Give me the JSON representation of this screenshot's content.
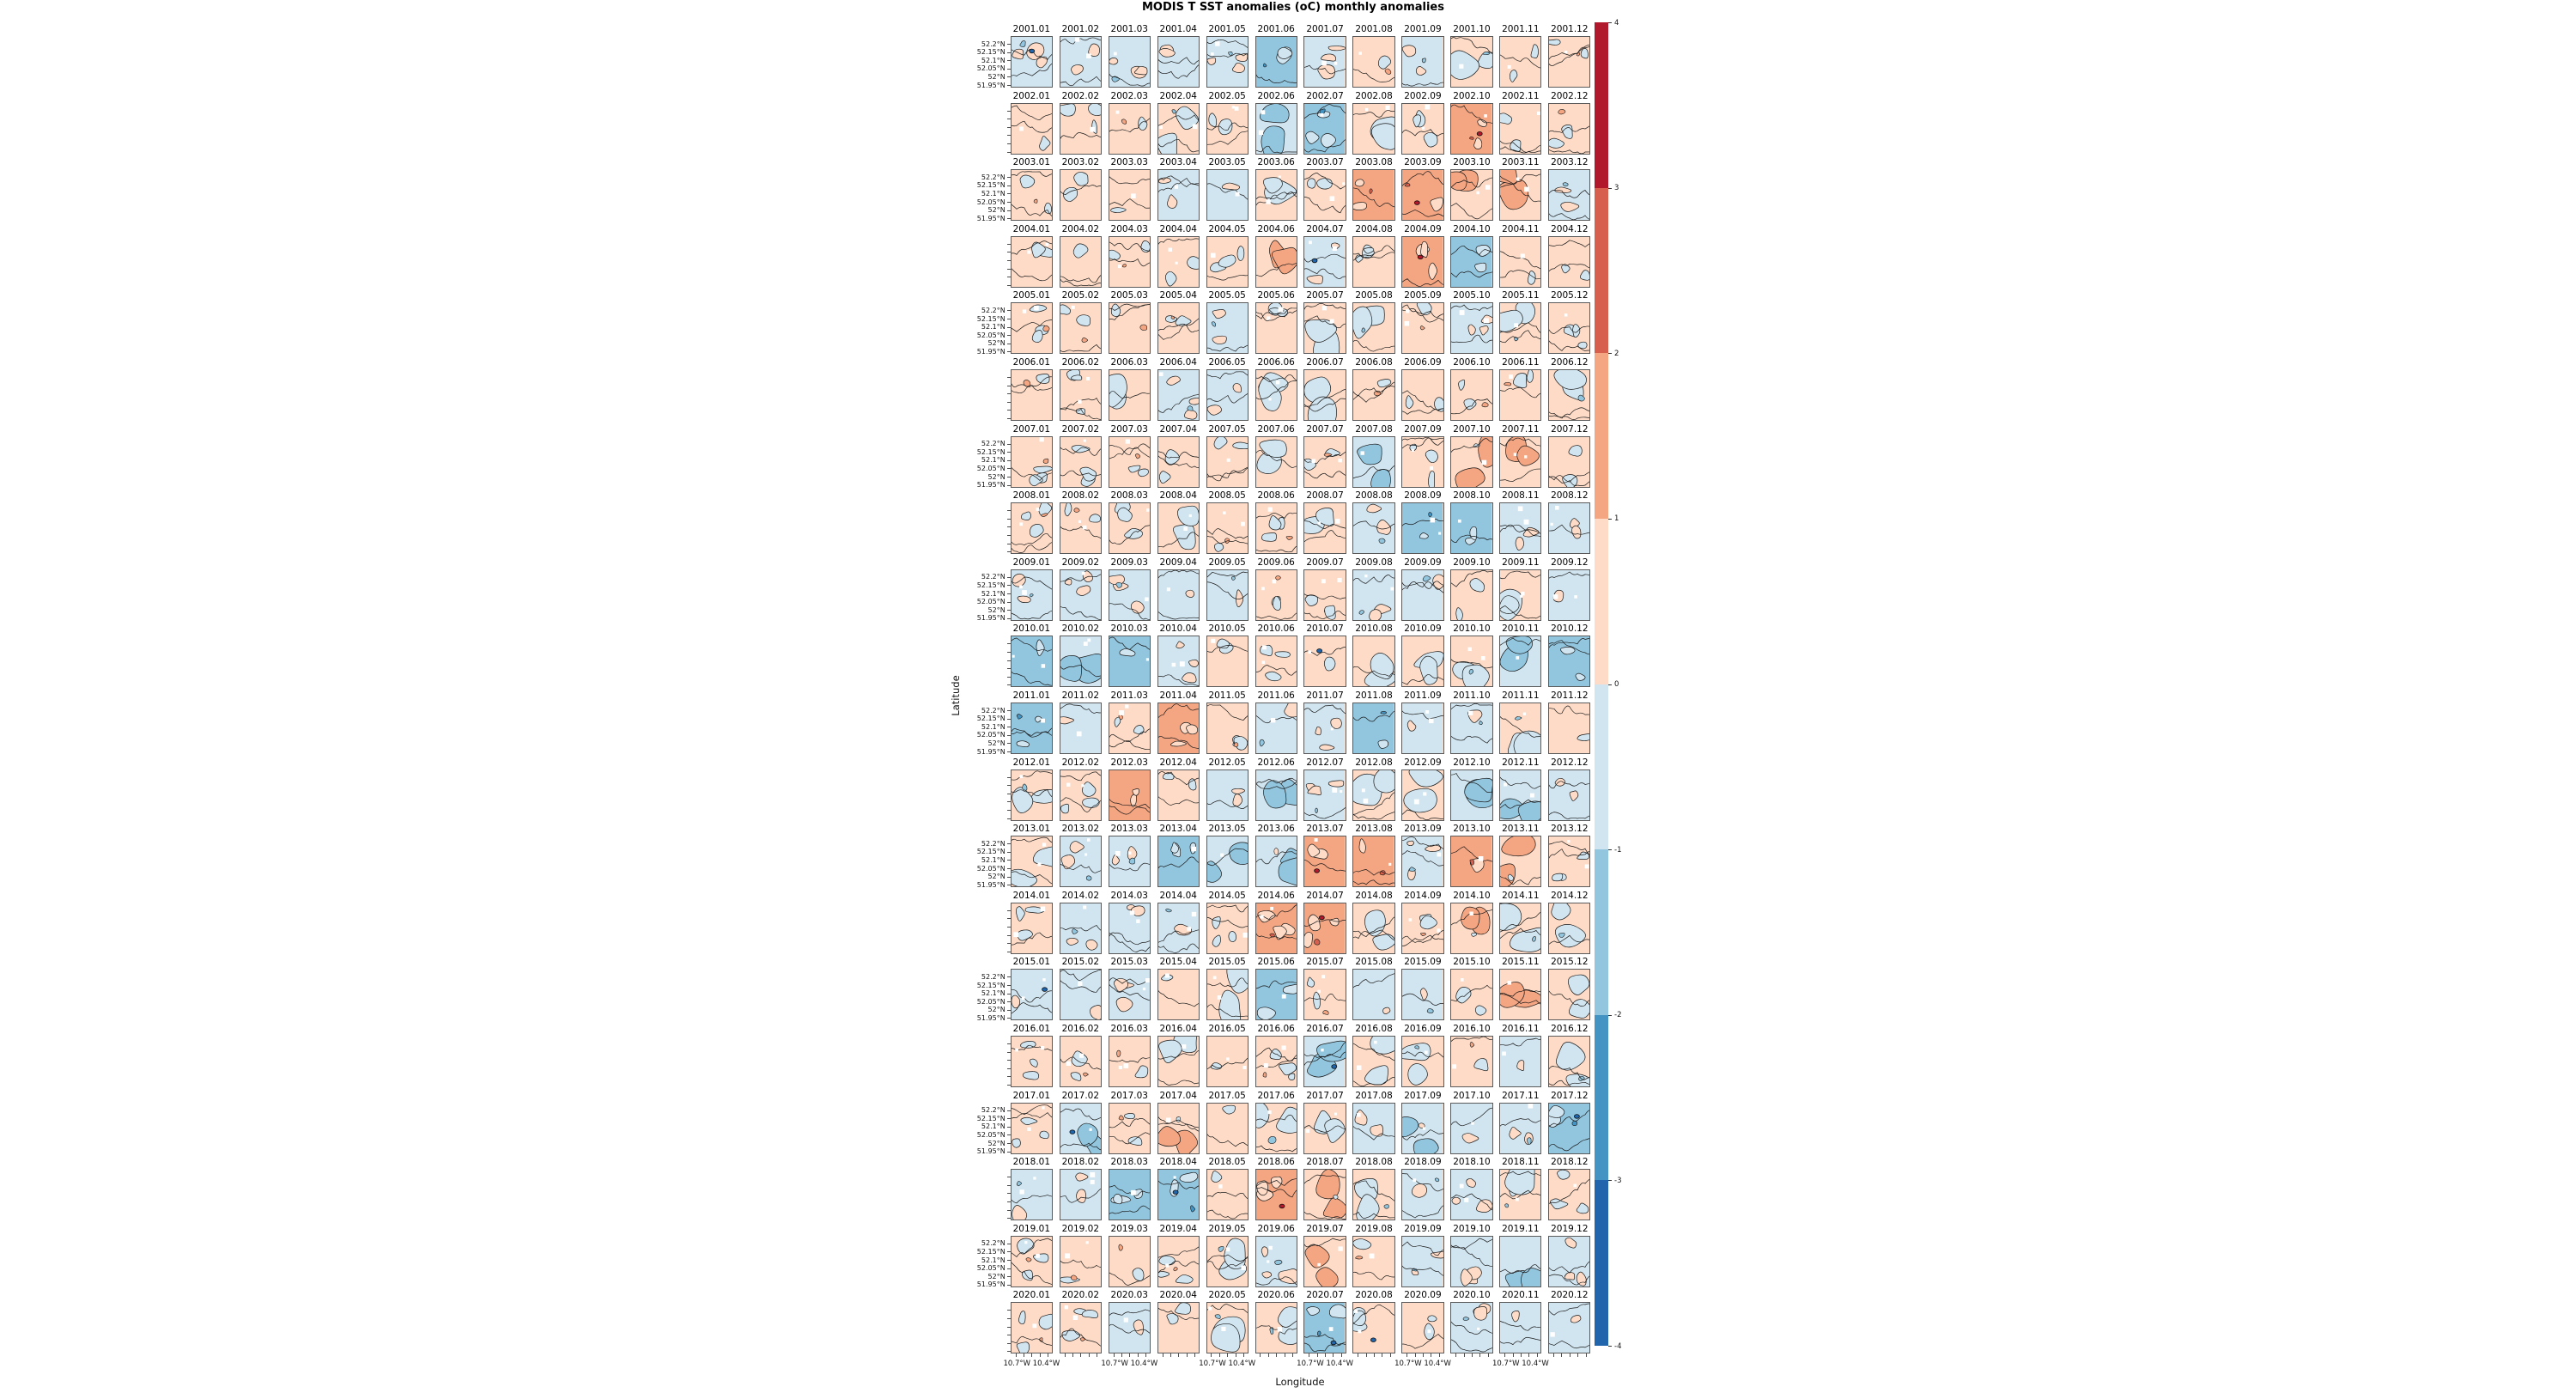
{
  "figure": {
    "title": "MODIS T SST anomalies (oC) monthly anomalies",
    "xlabel": "Longitude",
    "ylabel": "Latitude"
  },
  "axes": {
    "lat_tick_labels": [
      "52.2°N",
      "52.15°N",
      "52.1°N",
      "52.05°N",
      "52°N",
      "51.95°N"
    ],
    "lon_tick_labels": [
      "10.7°W",
      "10.4°W"
    ]
  },
  "colorbar": {
    "tick_labels": [
      "4",
      "3",
      "2",
      "1",
      "0",
      "-1",
      "-2",
      "-3",
      "-4"
    ],
    "vmin": -4,
    "vmax": 4,
    "segment_colors_top_to_bottom": [
      "#b2182b",
      "#d6604d",
      "#f4a582",
      "#fddbc7",
      "#d1e5f0",
      "#92c5de",
      "#4393c3",
      "#2166ac"
    ]
  },
  "chart_data": {
    "type": "heatmap",
    "title": "MODIS T SST anomalies (oC) monthly anomalies",
    "xlabel": "Longitude",
    "ylabel": "Latitude",
    "units": "°C",
    "colormap": "RdBu_r",
    "levels": [
      -4,
      -3,
      -2,
      -1,
      0,
      1,
      2,
      3,
      4
    ],
    "panel_label_format": "year.month",
    "years": [
      2001,
      2002,
      2003,
      2004,
      2005,
      2006,
      2007,
      2008,
      2009,
      2010,
      2011,
      2012,
      2013,
      2014,
      2015,
      2016,
      2017,
      2018,
      2019,
      2020
    ],
    "months": [
      "01",
      "02",
      "03",
      "04",
      "05",
      "06",
      "07",
      "08",
      "09",
      "10",
      "11",
      "12"
    ],
    "lat_ticks": [
      "52.2°N",
      "52.15°N",
      "52.1°N",
      "52.05°N",
      "52°N",
      "51.95°N"
    ],
    "lon_ticks": [
      "10.7°W",
      "10.4°W"
    ],
    "mean_anomaly_estimate_by_year": {
      "2001": [
        -0.5,
        -0.5,
        -0.5,
        -0.5,
        -0.5,
        -1.5,
        -0.5,
        0.5,
        -0.5,
        0.0,
        0.5,
        0.5
      ],
      "2002": [
        0.5,
        0.5,
        0.5,
        0.0,
        0.5,
        -1.0,
        -1.5,
        0.0,
        0.5,
        1.5,
        0.5,
        0.5
      ],
      "2003": [
        0.5,
        0.5,
        0.5,
        -0.5,
        -0.5,
        0.0,
        0.5,
        1.5,
        1.5,
        1.0,
        1.0,
        -0.5
      ],
      "2004": [
        0.5,
        0.5,
        0.5,
        0.5,
        0.5,
        1.0,
        -0.5,
        0.5,
        1.5,
        -1.5,
        0.5,
        0.5
      ],
      "2005": [
        0.5,
        0.5,
        0.5,
        0.5,
        -0.5,
        0.5,
        0.0,
        0.0,
        0.5,
        -0.5,
        0.0,
        0.5
      ],
      "2006": [
        0.5,
        0.5,
        0.0,
        -0.5,
        -0.5,
        0.0,
        0.0,
        0.5,
        0.5,
        0.5,
        0.5,
        0.0
      ],
      "2007": [
        0.5,
        0.5,
        0.5,
        0.5,
        0.5,
        0.0,
        0.5,
        -1.0,
        0.5,
        1.0,
        1.0,
        0.5
      ],
      "2008": [
        0.5,
        0.5,
        0.5,
        0.0,
        0.5,
        0.5,
        0.0,
        -0.5,
        -1.5,
        -1.5,
        -0.5,
        -0.5
      ],
      "2009": [
        -0.5,
        -0.5,
        -0.5,
        -0.5,
        -0.5,
        0.5,
        0.5,
        -0.5,
        -0.5,
        0.5,
        0.0,
        -0.5
      ],
      "2010": [
        -1.5,
        -1.0,
        -1.5,
        -0.5,
        0.5,
        0.5,
        0.5,
        0.0,
        0.0,
        0.0,
        -1.0,
        -1.5
      ],
      "2011": [
        -1.5,
        -0.5,
        0.5,
        1.5,
        0.5,
        -0.5,
        -0.5,
        -1.5,
        -0.5,
        -0.5,
        0.0,
        0.5
      ],
      "2012": [
        0.0,
        0.5,
        1.5,
        0.5,
        -0.5,
        -1.0,
        -0.5,
        0.0,
        0.0,
        -1.0,
        -1.0,
        -0.5
      ],
      "2013": [
        0.0,
        -0.5,
        -0.5,
        -1.5,
        -1.0,
        -1.0,
        1.5,
        1.5,
        -0.5,
        1.5,
        1.0,
        0.5
      ],
      "2014": [
        0.5,
        -0.5,
        -0.5,
        -0.5,
        0.5,
        1.5,
        1.5,
        0.0,
        0.5,
        1.0,
        0.0,
        0.0
      ],
      "2015": [
        -0.5,
        -0.5,
        -0.5,
        0.5,
        0.0,
        -1.5,
        0.5,
        -0.5,
        -0.5,
        0.5,
        1.0,
        0.0
      ],
      "2016": [
        0.5,
        0.5,
        0.5,
        0.0,
        0.5,
        0.5,
        -1.0,
        0.0,
        0.0,
        0.5,
        -0.5,
        0.0
      ],
      "2017": [
        0.5,
        -1.0,
        0.5,
        1.0,
        0.5,
        0.0,
        0.0,
        -0.5,
        -1.0,
        -0.5,
        -0.5,
        -1.5
      ],
      "2018": [
        -0.5,
        -0.5,
        -1.5,
        -1.5,
        0.5,
        1.5,
        1.0,
        0.0,
        -0.5,
        -0.5,
        0.0,
        0.5
      ],
      "2019": [
        0.5,
        0.5,
        0.5,
        0.5,
        0.0,
        -0.5,
        1.0,
        0.5,
        -0.5,
        -0.5,
        -1.0,
        -0.5
      ],
      "2020": [
        0.5,
        0.5,
        -0.5,
        0.5,
        0.0,
        0.0,
        -1.5,
        0.5,
        0.5,
        -0.5,
        -0.5,
        -0.5
      ]
    },
    "cold_spot_panels": [
      "2001.01",
      "2004.07",
      "2010.07",
      "2015.01",
      "2016.07",
      "2017.02",
      "2017.12",
      "2018.04",
      "2020.07",
      "2020.08"
    ],
    "warm_spot_panels": [
      "2002.10",
      "2003.09",
      "2004.09",
      "2013.07",
      "2014.07",
      "2018.06"
    ]
  }
}
